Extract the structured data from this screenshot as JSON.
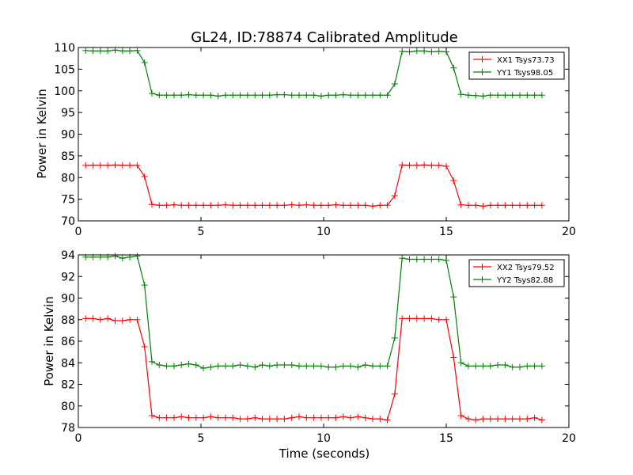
{
  "figure": {
    "title": "GL24, ID:78874 Calibrated Amplitude"
  },
  "chart_data": [
    {
      "type": "line",
      "title": "GL24, ID:78874 Calibrated Amplitude",
      "xlabel": "",
      "ylabel": "Power in Kelvin",
      "xlim": [
        0,
        20
      ],
      "ylim": [
        70,
        110
      ],
      "xticks": [
        0,
        5,
        10,
        15,
        20
      ],
      "yticks": [
        70,
        75,
        80,
        85,
        90,
        95,
        100,
        105,
        110
      ],
      "grid": false,
      "legend_position": "top-right",
      "x": [
        0.3,
        0.6,
        0.9,
        1.2,
        1.5,
        1.8,
        2.1,
        2.4,
        2.7,
        3.0,
        3.3,
        3.6,
        3.9,
        4.2,
        4.5,
        4.8,
        5.1,
        5.4,
        5.7,
        6.0,
        6.3,
        6.6,
        6.9,
        7.2,
        7.5,
        7.8,
        8.1,
        8.4,
        8.7,
        9.0,
        9.3,
        9.6,
        9.9,
        10.2,
        10.5,
        10.8,
        11.1,
        11.4,
        11.7,
        12.0,
        12.3,
        12.6,
        12.9,
        13.2,
        13.5,
        13.8,
        14.1,
        14.4,
        14.7,
        15.0,
        15.3,
        15.6,
        15.9,
        16.2,
        16.5,
        16.8,
        17.1,
        17.4,
        17.7,
        18.0,
        18.3,
        18.6,
        18.9
      ],
      "series": [
        {
          "name": "XX1 Tsys73.73",
          "color": "#ff0000",
          "values": [
            82.8,
            82.8,
            82.8,
            82.8,
            82.9,
            82.8,
            82.8,
            82.8,
            80.2,
            73.8,
            73.6,
            73.6,
            73.7,
            73.6,
            73.6,
            73.6,
            73.6,
            73.6,
            73.6,
            73.7,
            73.6,
            73.6,
            73.6,
            73.6,
            73.6,
            73.6,
            73.6,
            73.6,
            73.7,
            73.6,
            73.7,
            73.6,
            73.6,
            73.6,
            73.7,
            73.6,
            73.6,
            73.6,
            73.6,
            73.4,
            73.6,
            73.6,
            75.8,
            82.9,
            82.8,
            82.8,
            82.9,
            82.8,
            82.8,
            82.6,
            79.3,
            73.7,
            73.6,
            73.6,
            73.4,
            73.6,
            73.6,
            73.6,
            73.6,
            73.6,
            73.6,
            73.6,
            73.6
          ]
        },
        {
          "name": "YY1 Tsys98.05",
          "color": "#008000",
          "values": [
            109.3,
            109.2,
            109.2,
            109.2,
            109.4,
            109.2,
            109.2,
            109.3,
            106.5,
            99.4,
            99.0,
            99.0,
            99.0,
            99.0,
            99.1,
            99.0,
            99.0,
            99.0,
            98.8,
            99.0,
            99.0,
            99.0,
            99.0,
            99.0,
            99.0,
            99.0,
            99.1,
            99.1,
            99.0,
            99.0,
            99.0,
            99.0,
            98.8,
            99.0,
            99.0,
            99.1,
            99.0,
            99.0,
            99.0,
            99.0,
            99.0,
            99.0,
            101.6,
            109.1,
            109.0,
            109.2,
            109.2,
            109.0,
            109.1,
            109.0,
            105.3,
            99.2,
            99.0,
            98.9,
            98.8,
            99.0,
            99.0,
            99.0,
            99.0,
            99.0,
            99.0,
            99.0,
            99.0
          ]
        }
      ]
    },
    {
      "type": "line",
      "title": "",
      "xlabel": "Time (seconds)",
      "ylabel": "Power in Kelvin",
      "xlim": [
        0,
        20
      ],
      "ylim": [
        78,
        94
      ],
      "xticks": [
        0,
        5,
        10,
        15,
        20
      ],
      "yticks": [
        78,
        80,
        82,
        84,
        86,
        88,
        90,
        92,
        94
      ],
      "grid": false,
      "legend_position": "top-right",
      "x": [
        0.3,
        0.6,
        0.9,
        1.2,
        1.5,
        1.8,
        2.1,
        2.4,
        2.7,
        3.0,
        3.3,
        3.6,
        3.9,
        4.2,
        4.5,
        4.8,
        5.1,
        5.4,
        5.7,
        6.0,
        6.3,
        6.6,
        6.9,
        7.2,
        7.5,
        7.8,
        8.1,
        8.4,
        8.7,
        9.0,
        9.3,
        9.6,
        9.9,
        10.2,
        10.5,
        10.8,
        11.1,
        11.4,
        11.7,
        12.0,
        12.3,
        12.6,
        12.9,
        13.2,
        13.5,
        13.8,
        14.1,
        14.4,
        14.7,
        15.0,
        15.3,
        15.6,
        15.9,
        16.2,
        16.5,
        16.8,
        17.1,
        17.4,
        17.7,
        18.0,
        18.3,
        18.6,
        18.9
      ],
      "series": [
        {
          "name": "XX2 Tsys79.52",
          "color": "#ff0000",
          "values": [
            88.1,
            88.1,
            88.0,
            88.1,
            87.9,
            87.9,
            88.0,
            88.0,
            85.5,
            79.1,
            78.9,
            78.9,
            78.9,
            79.0,
            78.9,
            78.9,
            78.9,
            79.0,
            78.9,
            78.9,
            78.9,
            78.8,
            78.8,
            78.9,
            78.8,
            78.8,
            78.8,
            78.8,
            78.9,
            79.0,
            78.9,
            78.9,
            78.9,
            78.9,
            78.9,
            79.0,
            78.9,
            79.0,
            78.9,
            78.8,
            78.8,
            78.7,
            81.1,
            88.1,
            88.1,
            88.1,
            88.1,
            88.1,
            88.0,
            88.0,
            84.5,
            79.1,
            78.8,
            78.7,
            78.8,
            78.8,
            78.8,
            78.8,
            78.8,
            78.8,
            78.8,
            78.9,
            78.7
          ]
        },
        {
          "name": "YY2 Tsys82.88",
          "color": "#008000",
          "values": [
            93.8,
            93.8,
            93.8,
            93.8,
            93.9,
            93.7,
            93.8,
            93.9,
            91.2,
            84.1,
            83.8,
            83.7,
            83.7,
            83.8,
            83.9,
            83.8,
            83.5,
            83.6,
            83.7,
            83.7,
            83.7,
            83.8,
            83.7,
            83.6,
            83.8,
            83.7,
            83.8,
            83.8,
            83.8,
            83.7,
            83.7,
            83.7,
            83.7,
            83.6,
            83.6,
            83.7,
            83.7,
            83.6,
            83.8,
            83.7,
            83.7,
            83.7,
            86.3,
            93.7,
            93.6,
            93.6,
            93.6,
            93.6,
            93.6,
            93.5,
            90.1,
            84.0,
            83.7,
            83.7,
            83.7,
            83.7,
            83.8,
            83.8,
            83.6,
            83.6,
            83.7,
            83.7,
            83.7
          ]
        }
      ]
    }
  ]
}
